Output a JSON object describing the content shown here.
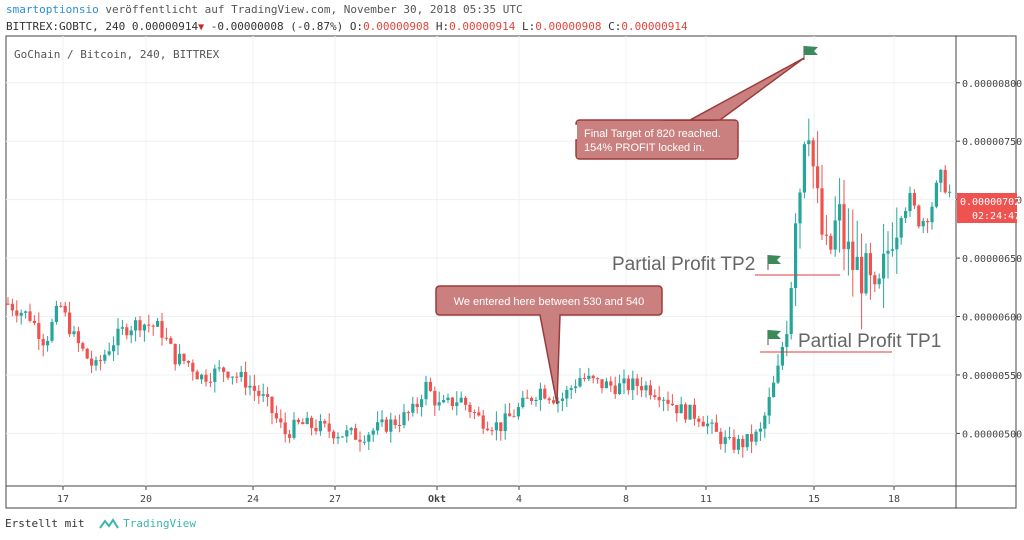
{
  "header": {
    "author": "smartoptionsio",
    "published": "veröffentlicht auf TradingView.com, November 30, 2018 05:35 UTC",
    "symbol": "BITTREX:GOBTC, 240",
    "last": "0.00000914",
    "change": "-0.00000008 (-0.87%)",
    "o_label": "O:",
    "o_value": "0.00000908",
    "h_label": "H:",
    "h_value": "0.00000914",
    "l_label": "L:",
    "l_value": "0.00000908",
    "c_label": "C:",
    "c_value": "0.00000914"
  },
  "chart_data": {
    "type": "candlestick",
    "legend_title": "GoChain / Bitcoin, 240, BITTREX",
    "ylim": [
      4.55e-06,
      8.4e-06
    ],
    "y_ticks": [
      5e-06,
      5.5e-06,
      6e-06,
      6.5e-06,
      7e-06,
      7.5e-06,
      8e-06
    ],
    "y_tick_labels": [
      "0.00000500",
      "0.00000550",
      "0.00000600",
      "0.00000650",
      "0.00000700",
      "0.00000750",
      "0.00000800"
    ],
    "x_ticks": [
      {
        "pos": 63,
        "label": "17"
      },
      {
        "pos": 146,
        "label": "20"
      },
      {
        "pos": 253,
        "label": "24"
      },
      {
        "pos": 335,
        "label": "27"
      },
      {
        "pos": 437,
        "label": "Okt"
      },
      {
        "pos": 519,
        "label": "4"
      },
      {
        "pos": 626,
        "label": "8"
      },
      {
        "pos": 706,
        "label": "11"
      },
      {
        "pos": 814,
        "label": "15"
      },
      {
        "pos": 894,
        "label": "18"
      }
    ],
    "keypoints": [
      [
        0,
        6.15e-06
      ],
      [
        30,
        6e-06
      ],
      [
        45,
        5.78e-06
      ],
      [
        60,
        6.1e-06
      ],
      [
        75,
        5.8e-06
      ],
      [
        95,
        5.55e-06
      ],
      [
        110,
        5.75e-06
      ],
      [
        125,
        5.9e-06
      ],
      [
        140,
        5.95e-06
      ],
      [
        160,
        5.9e-06
      ],
      [
        175,
        5.65e-06
      ],
      [
        190,
        5.6e-06
      ],
      [
        200,
        5.48e-06
      ],
      [
        225,
        5.55e-06
      ],
      [
        245,
        5.45e-06
      ],
      [
        265,
        5.28e-06
      ],
      [
        285,
        5e-06
      ],
      [
        300,
        5.08e-06
      ],
      [
        320,
        5.05e-06
      ],
      [
        340,
        5e-06
      ],
      [
        360,
        4.98e-06
      ],
      [
        380,
        5.05e-06
      ],
      [
        400,
        5.12e-06
      ],
      [
        415,
        5.2e-06
      ],
      [
        425,
        5.42e-06
      ],
      [
        440,
        5.22e-06
      ],
      [
        460,
        5.3e-06
      ],
      [
        480,
        5.12e-06
      ],
      [
        500,
        5.06e-06
      ],
      [
        520,
        5.22e-06
      ],
      [
        540,
        5.38e-06
      ],
      [
        560,
        5.28e-06
      ],
      [
        580,
        5.48e-06
      ],
      [
        600,
        5.42e-06
      ],
      [
        620,
        5.4e-06
      ],
      [
        640,
        5.42e-06
      ],
      [
        660,
        5.35e-06
      ],
      [
        680,
        5.2e-06
      ],
      [
        700,
        5.15e-06
      ],
      [
        715,
        5e-06
      ],
      [
        730,
        4.9e-06
      ],
      [
        745,
        4.92e-06
      ],
      [
        760,
        5e-06
      ],
      [
        770,
        5.3e-06
      ],
      [
        780,
        5.6e-06
      ],
      [
        790,
        6.2e-06
      ],
      [
        796,
        7e-06
      ],
      [
        802,
        7.2e-06
      ],
      [
        806,
        7.9e-06
      ],
      [
        810,
        7.6e-06
      ],
      [
        815,
        7.1e-06
      ],
      [
        820,
        6.8e-06
      ],
      [
        826,
        6.5e-06
      ],
      [
        832,
        6.6e-06
      ],
      [
        838,
        6.9e-06
      ],
      [
        845,
        6.6e-06
      ],
      [
        852,
        6.45e-06
      ],
      [
        860,
        6.4e-06
      ],
      [
        868,
        6.3e-06
      ],
      [
        876,
        6.05e-06
      ],
      [
        884,
        6.4e-06
      ],
      [
        892,
        6.75e-06
      ],
      [
        900,
        6.9e-06
      ],
      [
        910,
        7e-06
      ],
      [
        920,
        6.8e-06
      ],
      [
        930,
        6.9e-06
      ],
      [
        940,
        7.2e-06
      ],
      [
        950,
        7.05e-06
      ]
    ],
    "current_price_label": "0.00000702",
    "countdown_label": "02:24:47",
    "annotations": {
      "entry_callout": "We entered here between 530 and 540",
      "target_line1": "Final Target of 820 reached.",
      "target_line2": "154% PROFIT locked in.",
      "tp1_label": "Partial Profit TP1",
      "tp2_label": "Partial Profit TP2"
    },
    "colors": {
      "up": "#26a69a",
      "down": "#ef5350",
      "callout_fill": "#c9807f",
      "callout_border": "#9b3b3b",
      "flag": "#3c8a5a",
      "tp_line": "#e23b3b",
      "price_tag": "#ef5350"
    },
    "grid": true
  },
  "footer": {
    "created_with": "Erstellt mit",
    "brand": "TradingView"
  }
}
